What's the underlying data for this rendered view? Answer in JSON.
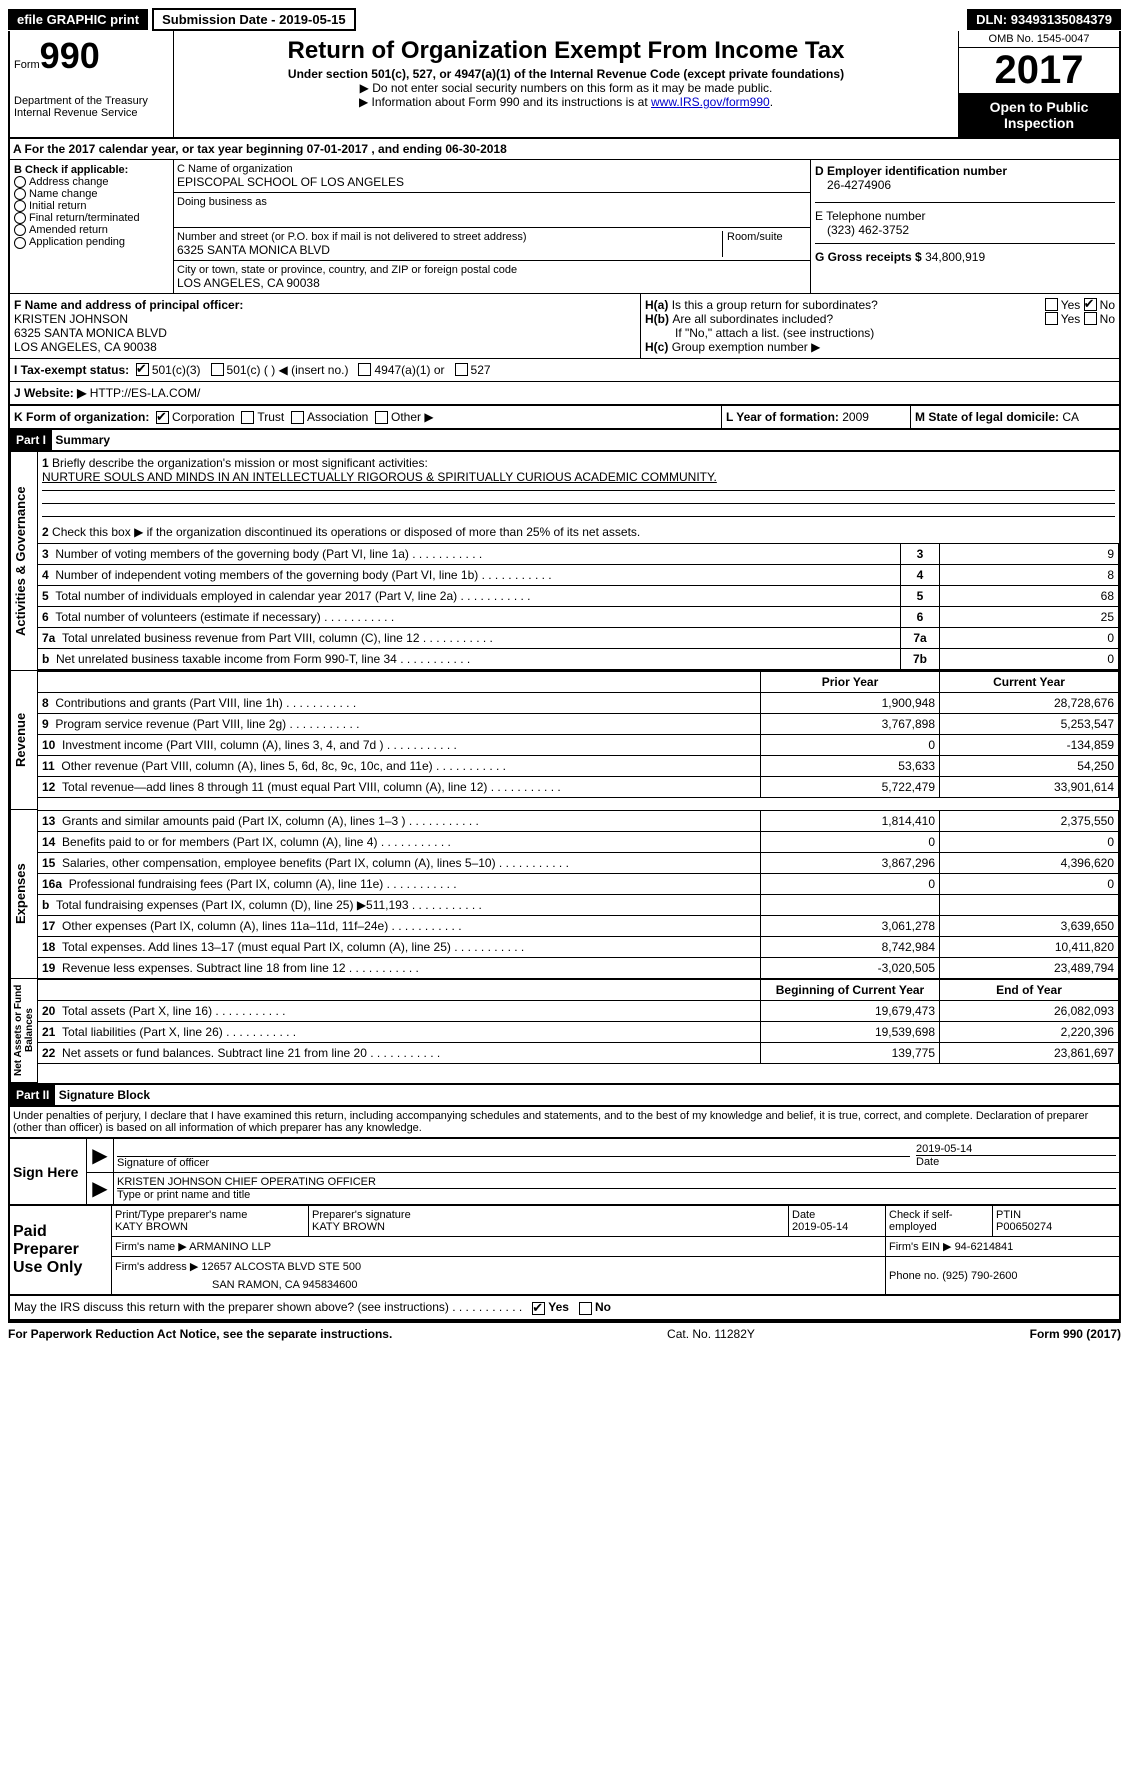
{
  "topbar": {
    "efile": "efile GRAPHIC print",
    "subdate_label": "Submission Date - ",
    "subdate": "2019-05-15",
    "dln_label": "DLN: ",
    "dln": "93493135084379"
  },
  "header": {
    "form_word": "Form",
    "form_num": "990",
    "dept1": "Department of the Treasury",
    "dept2": "Internal Revenue Service",
    "title": "Return of Organization Exempt From Income Tax",
    "sub1": "Under section 501(c), 527, or 4947(a)(1) of the Internal Revenue Code (except private foundations)",
    "sub2": "▶ Do not enter social security numbers on this form as it may be made public.",
    "sub3_a": "▶ Information about Form 990 and its instructions is at ",
    "sub3_link": "www.IRS.gov/form990",
    "omb": "OMB No. 1545-0047",
    "year": "2017",
    "open": "Open to Public Inspection"
  },
  "a": {
    "line": "A   For the 2017 calendar year, or tax year beginning 07-01-2017    , and ending 06-30-2018"
  },
  "b": {
    "title": "B Check if applicable:",
    "opts": [
      "Address change",
      "Name change",
      "Initial return",
      "Final return/terminated",
      "Amended return",
      "Application pending"
    ]
  },
  "c": {
    "name_label": "C Name of organization",
    "name": "EPISCOPAL SCHOOL OF LOS ANGELES",
    "dba_label": "Doing business as",
    "street_label": "Number and street (or P.O. box if mail is not delivered to street address)",
    "street": "6325 SANTA MONICA BLVD",
    "room_label": "Room/suite",
    "city_label": "City or town, state or province, country, and ZIP or foreign postal code",
    "city": "LOS ANGELES, CA  90038"
  },
  "d": {
    "label": "D Employer identification number",
    "val": "26-4274906"
  },
  "e": {
    "label": "E Telephone number",
    "val": "(323) 462-3752"
  },
  "g": {
    "label": "G Gross receipts $ ",
    "val": "34,800,919"
  },
  "f": {
    "label": "F  Name and address of principal officer:",
    "name": "KRISTEN JOHNSON",
    "street": "6325 SANTA MONICA BLVD",
    "city": "LOS ANGELES, CA  90038"
  },
  "h": {
    "a": "Is this a group return for subordinates?",
    "b": "Are all subordinates included?",
    "note": "If \"No,\" attach a list. (see instructions)",
    "c": "Group exemption number ▶"
  },
  "i": {
    "label": "I   Tax-exempt status:",
    "opts": [
      "501(c)(3)",
      "501(c) (  ) ◀ (insert no.)",
      "4947(a)(1) or",
      "527"
    ]
  },
  "j": {
    "label": "J   Website: ▶ ",
    "val": "HTTP://ES-LA.COM/"
  },
  "k": {
    "label": "K Form of organization:",
    "opts": [
      "Corporation",
      "Trust",
      "Association",
      "Other ▶"
    ]
  },
  "l": {
    "label": "L Year of formation: ",
    "val": "2009"
  },
  "m": {
    "label": "M State of legal domicile: ",
    "val": "CA"
  },
  "part1": {
    "hdr": "Part I",
    "title": "Summary",
    "q1": "Briefly describe the organization's mission or most significant activities:",
    "mission": "NURTURE SOULS AND MINDS IN AN INTELLECTUALLY RIGOROUS & SPIRITUALLY CURIOUS ACADEMIC COMMUNITY.",
    "q2": "Check this box ▶        if the organization discontinued its operations or disposed of more than 25% of its net assets.",
    "sidebar_gov": "Activities & Governance",
    "sidebar_rev": "Revenue",
    "sidebar_exp": "Expenses",
    "sidebar_net": "Net Assets or Fund Balances",
    "prior": "Prior Year",
    "current": "Current Year",
    "beg": "Beginning of Current Year",
    "end": "End of Year",
    "rows_gov": [
      {
        "n": "3",
        "d": "Number of voting members of the governing body (Part VI, line 1a)",
        "ln": "3",
        "v": "9"
      },
      {
        "n": "4",
        "d": "Number of independent voting members of the governing body (Part VI, line 1b)",
        "ln": "4",
        "v": "8"
      },
      {
        "n": "5",
        "d": "Total number of individuals employed in calendar year 2017 (Part V, line 2a)",
        "ln": "5",
        "v": "68"
      },
      {
        "n": "6",
        "d": "Total number of volunteers (estimate if necessary)",
        "ln": "6",
        "v": "25"
      },
      {
        "n": "7a",
        "d": "Total unrelated business revenue from Part VIII, column (C), line 12",
        "ln": "7a",
        "v": "0"
      },
      {
        "n": "b",
        "d": "Net unrelated business taxable income from Form 990-T, line 34",
        "ln": "7b",
        "v": "0"
      }
    ],
    "rows_rev": [
      {
        "n": "8",
        "d": "Contributions and grants (Part VIII, line 1h)",
        "p": "1,900,948",
        "c": "28,728,676"
      },
      {
        "n": "9",
        "d": "Program service revenue (Part VIII, line 2g)",
        "p": "3,767,898",
        "c": "5,253,547"
      },
      {
        "n": "10",
        "d": "Investment income (Part VIII, column (A), lines 3, 4, and 7d )",
        "p": "0",
        "c": "-134,859"
      },
      {
        "n": "11",
        "d": "Other revenue (Part VIII, column (A), lines 5, 6d, 8c, 9c, 10c, and 11e)",
        "p": "53,633",
        "c": "54,250"
      },
      {
        "n": "12",
        "d": "Total revenue—add lines 8 through 11 (must equal Part VIII, column (A), line 12)",
        "p": "5,722,479",
        "c": "33,901,614"
      }
    ],
    "rows_exp": [
      {
        "n": "13",
        "d": "Grants and similar amounts paid (Part IX, column (A), lines 1–3 )",
        "p": "1,814,410",
        "c": "2,375,550"
      },
      {
        "n": "14",
        "d": "Benefits paid to or for members (Part IX, column (A), line 4)",
        "p": "0",
        "c": "0"
      },
      {
        "n": "15",
        "d": "Salaries, other compensation, employee benefits (Part IX, column (A), lines 5–10)",
        "p": "3,867,296",
        "c": "4,396,620"
      },
      {
        "n": "16a",
        "d": "Professional fundraising fees (Part IX, column (A), line 11e)",
        "p": "0",
        "c": "0"
      },
      {
        "n": "b",
        "d": "Total fundraising expenses (Part IX, column (D), line 25) ▶511,193",
        "p": "",
        "c": "",
        "grey": true
      },
      {
        "n": "17",
        "d": "Other expenses (Part IX, column (A), lines 11a–11d, 11f–24e)",
        "p": "3,061,278",
        "c": "3,639,650"
      },
      {
        "n": "18",
        "d": "Total expenses. Add lines 13–17 (must equal Part IX, column (A), line 25)",
        "p": "8,742,984",
        "c": "10,411,820"
      },
      {
        "n": "19",
        "d": "Revenue less expenses. Subtract line 18 from line 12",
        "p": "-3,020,505",
        "c": "23,489,794"
      }
    ],
    "rows_net": [
      {
        "n": "20",
        "d": "Total assets (Part X, line 16)",
        "p": "19,679,473",
        "c": "26,082,093"
      },
      {
        "n": "21",
        "d": "Total liabilities (Part X, line 26)",
        "p": "19,539,698",
        "c": "2,220,396"
      },
      {
        "n": "22",
        "d": "Net assets or fund balances. Subtract line 21 from line 20",
        "p": "139,775",
        "c": "23,861,697"
      }
    ]
  },
  "part2": {
    "hdr": "Part II",
    "title": "Signature Block",
    "perjury": "Under penalties of perjury, I declare that I have examined this return, including accompanying schedules and statements, and to the best of my knowledge and belief, it is true, correct, and complete. Declaration of preparer (other than officer) is based on all information of which preparer has any knowledge.",
    "sign_here": "Sign Here",
    "sig_officer": "Signature of officer",
    "date_label": "Date",
    "sig_date": "2019-05-14",
    "officer_name": "KRISTEN JOHNSON CHIEF OPERATING OFFICER",
    "type_name": "Type or print name and title",
    "paid": "Paid Preparer Use Only",
    "prep_name_label": "Print/Type preparer's name",
    "prep_name": "KATY BROWN",
    "prep_sig_label": "Preparer's signature",
    "prep_sig": "KATY BROWN",
    "prep_date": "2019-05-14",
    "check_self": "Check        if self-employed",
    "ptin_label": "PTIN",
    "ptin": "P00650274",
    "firm_name_label": "Firm's name      ▶ ",
    "firm_name": "ARMANINO LLP",
    "firm_ein_label": "Firm's EIN ▶ ",
    "firm_ein": "94-6214841",
    "firm_addr_label": "Firm's address ▶ ",
    "firm_addr": "12657 ALCOSTA BLVD STE 500",
    "firm_city": "SAN RAMON, CA  945834600",
    "phone_label": "Phone no. ",
    "phone": "(925) 790-2600",
    "discuss": "May the IRS discuss this return with the preparer shown above? (see instructions)",
    "yes": "Yes",
    "no": "No"
  },
  "footer": {
    "left": "For Paperwork Reduction Act Notice, see the separate instructions.",
    "mid": "Cat. No. 11282Y",
    "right": "Form 990 (2017)"
  }
}
